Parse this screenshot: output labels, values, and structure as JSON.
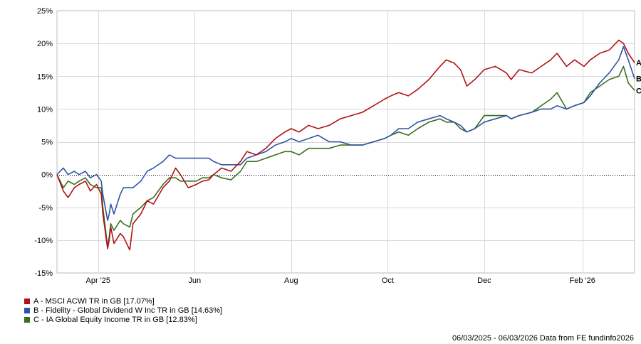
{
  "chart_data": {
    "type": "line",
    "title": "",
    "xlabel": "",
    "ylabel": "",
    "ylim": [
      -15,
      25
    ],
    "y_ticks": [
      -15,
      -10,
      -5,
      0,
      5,
      10,
      15,
      20,
      25
    ],
    "y_tick_labels": [
      "-15%",
      "-10%",
      "-5%",
      "0%",
      "5%",
      "10%",
      "15%",
      "20%",
      "25%"
    ],
    "x_range": [
      "2025-03-06",
      "2026-03-06"
    ],
    "x_ticks": [
      {
        "date": "2025-04-01",
        "label": "Apr '25"
      },
      {
        "date": "2025-06-01",
        "label": "Jun"
      },
      {
        "date": "2025-08-01",
        "label": "Aug"
      },
      {
        "date": "2025-10-01",
        "label": "Oct"
      },
      {
        "date": "2025-12-01",
        "label": "Dec"
      },
      {
        "date": "2026-02-01",
        "label": "Feb '26"
      }
    ],
    "grid": true,
    "zero_line": "dotted",
    "series": [
      {
        "name": "A - MSCI ACWI TR in GB [17.07%]",
        "end_label": "A",
        "color": "#b01116",
        "points": [
          [
            "2025-03-06",
            0
          ],
          [
            "2025-03-10",
            -2.5
          ],
          [
            "2025-03-13",
            -3.5
          ],
          [
            "2025-03-17",
            -2
          ],
          [
            "2025-03-20",
            -1.5
          ],
          [
            "2025-03-24",
            -1
          ],
          [
            "2025-03-27",
            -2.5
          ],
          [
            "2025-03-31",
            -1.5
          ],
          [
            "2025-04-03",
            -3
          ],
          [
            "2025-04-04",
            -6
          ],
          [
            "2025-04-07",
            -11.3
          ],
          [
            "2025-04-08",
            -10
          ],
          [
            "2025-04-09",
            -8
          ],
          [
            "2025-04-11",
            -10.5
          ],
          [
            "2025-04-15",
            -9
          ],
          [
            "2025-04-17",
            -9.5
          ],
          [
            "2025-04-21",
            -11.5
          ],
          [
            "2025-04-23",
            -7.5
          ],
          [
            "2025-04-28",
            -6
          ],
          [
            "2025-05-02",
            -4
          ],
          [
            "2025-05-06",
            -4.5
          ],
          [
            "2025-05-12",
            -2
          ],
          [
            "2025-05-16",
            -1
          ],
          [
            "2025-05-20",
            1
          ],
          [
            "2025-05-23",
            0
          ],
          [
            "2025-05-28",
            -2
          ],
          [
            "2025-06-02",
            -1.5
          ],
          [
            "2025-06-06",
            -1
          ],
          [
            "2025-06-10",
            -0.8
          ],
          [
            "2025-06-13",
            0
          ],
          [
            "2025-06-18",
            1
          ],
          [
            "2025-06-24",
            0.5
          ],
          [
            "2025-06-30",
            2
          ],
          [
            "2025-07-04",
            3.5
          ],
          [
            "2025-07-10",
            3
          ],
          [
            "2025-07-16",
            4
          ],
          [
            "2025-07-22",
            5.5
          ],
          [
            "2025-07-28",
            6.5
          ],
          [
            "2025-08-01",
            7
          ],
          [
            "2025-08-06",
            6.5
          ],
          [
            "2025-08-12",
            7.5
          ],
          [
            "2025-08-18",
            7
          ],
          [
            "2025-08-25",
            7.5
          ],
          [
            "2025-09-01",
            8.5
          ],
          [
            "2025-09-08",
            9
          ],
          [
            "2025-09-15",
            9.5
          ],
          [
            "2025-09-22",
            10.5
          ],
          [
            "2025-09-29",
            11.5
          ],
          [
            "2025-10-03",
            12
          ],
          [
            "2025-10-08",
            12.5
          ],
          [
            "2025-10-14",
            12
          ],
          [
            "2025-10-20",
            13
          ],
          [
            "2025-10-27",
            14.5
          ],
          [
            "2025-11-03",
            16.5
          ],
          [
            "2025-11-07",
            17.5
          ],
          [
            "2025-11-12",
            17
          ],
          [
            "2025-11-16",
            16
          ],
          [
            "2025-11-20",
            13.5
          ],
          [
            "2025-11-25",
            14.5
          ],
          [
            "2025-12-01",
            16
          ],
          [
            "2025-12-08",
            16.5
          ],
          [
            "2025-12-15",
            15.5
          ],
          [
            "2025-12-18",
            14.5
          ],
          [
            "2025-12-23",
            16
          ],
          [
            "2025-12-31",
            15.5
          ],
          [
            "2026-01-06",
            16.5
          ],
          [
            "2026-01-12",
            17.5
          ],
          [
            "2026-01-16",
            18.5
          ],
          [
            "2026-01-22",
            16.5
          ],
          [
            "2026-01-27",
            17.5
          ],
          [
            "2026-02-02",
            16.5
          ],
          [
            "2026-02-06",
            17.5
          ],
          [
            "2026-02-12",
            18.5
          ],
          [
            "2026-02-18",
            19
          ],
          [
            "2026-02-24",
            20.5
          ],
          [
            "2026-02-27",
            20
          ],
          [
            "2026-03-02",
            18.5
          ],
          [
            "2026-03-06",
            17.07
          ]
        ]
      },
      {
        "name": "B - Fidelity - Global Dividend W Inc TR in GB [14.63%]",
        "end_label": "B",
        "color": "#2f55a4",
        "points": [
          [
            "2025-03-06",
            0
          ],
          [
            "2025-03-10",
            1
          ],
          [
            "2025-03-13",
            0
          ],
          [
            "2025-03-17",
            0.5
          ],
          [
            "2025-03-20",
            0
          ],
          [
            "2025-03-24",
            0.5
          ],
          [
            "2025-03-27",
            -0.5
          ],
          [
            "2025-03-31",
            0
          ],
          [
            "2025-04-03",
            -1
          ],
          [
            "2025-04-04",
            -3
          ],
          [
            "2025-04-07",
            -7
          ],
          [
            "2025-04-08",
            -6
          ],
          [
            "2025-04-09",
            -4.5
          ],
          [
            "2025-04-11",
            -6
          ],
          [
            "2025-04-15",
            -3
          ],
          [
            "2025-04-17",
            -2
          ],
          [
            "2025-04-21",
            -2
          ],
          [
            "2025-04-23",
            -2
          ],
          [
            "2025-04-28",
            -1
          ],
          [
            "2025-05-02",
            0.5
          ],
          [
            "2025-05-06",
            1
          ],
          [
            "2025-05-12",
            2
          ],
          [
            "2025-05-16",
            3
          ],
          [
            "2025-05-20",
            2.5
          ],
          [
            "2025-05-23",
            2.5
          ],
          [
            "2025-05-28",
            2.5
          ],
          [
            "2025-06-02",
            2.5
          ],
          [
            "2025-06-06",
            2.5
          ],
          [
            "2025-06-10",
            2.5
          ],
          [
            "2025-06-13",
            2
          ],
          [
            "2025-06-18",
            1.5
          ],
          [
            "2025-06-24",
            1.5
          ],
          [
            "2025-06-30",
            1.5
          ],
          [
            "2025-07-04",
            2.5
          ],
          [
            "2025-07-10",
            3
          ],
          [
            "2025-07-16",
            3.5
          ],
          [
            "2025-07-22",
            4.5
          ],
          [
            "2025-07-28",
            5
          ],
          [
            "2025-08-01",
            5.5
          ],
          [
            "2025-08-06",
            5
          ],
          [
            "2025-08-12",
            5.5
          ],
          [
            "2025-08-18",
            6
          ],
          [
            "2025-08-25",
            5
          ],
          [
            "2025-09-01",
            5
          ],
          [
            "2025-09-08",
            4.5
          ],
          [
            "2025-09-15",
            4.5
          ],
          [
            "2025-09-22",
            5
          ],
          [
            "2025-09-29",
            5.5
          ],
          [
            "2025-10-03",
            6
          ],
          [
            "2025-10-08",
            7
          ],
          [
            "2025-10-14",
            7
          ],
          [
            "2025-10-20",
            8
          ],
          [
            "2025-10-27",
            8.5
          ],
          [
            "2025-11-03",
            9
          ],
          [
            "2025-11-07",
            8.5
          ],
          [
            "2025-11-12",
            8
          ],
          [
            "2025-11-16",
            7.5
          ],
          [
            "2025-11-20",
            6.5
          ],
          [
            "2025-11-25",
            7
          ],
          [
            "2025-12-01",
            8
          ],
          [
            "2025-12-08",
            8.5
          ],
          [
            "2025-12-15",
            9
          ],
          [
            "2025-12-18",
            8.5
          ],
          [
            "2025-12-23",
            9
          ],
          [
            "2025-12-31",
            9.5
          ],
          [
            "2026-01-06",
            10
          ],
          [
            "2026-01-12",
            10
          ],
          [
            "2026-01-16",
            10.5
          ],
          [
            "2026-01-22",
            10
          ],
          [
            "2026-01-27",
            10.5
          ],
          [
            "2026-02-02",
            11
          ],
          [
            "2026-02-06",
            12
          ],
          [
            "2026-02-12",
            14
          ],
          [
            "2026-02-18",
            15.5
          ],
          [
            "2026-02-24",
            17.5
          ],
          [
            "2026-02-27",
            19.5
          ],
          [
            "2026-03-02",
            17.5
          ],
          [
            "2026-03-06",
            14.63
          ]
        ]
      },
      {
        "name": "C - IA Global Equity Income TR in GB [12.83%]",
        "end_label": "C",
        "color": "#3b6e1e",
        "points": [
          [
            "2025-03-06",
            0
          ],
          [
            "2025-03-10",
            -2
          ],
          [
            "2025-03-13",
            -1
          ],
          [
            "2025-03-17",
            -1.5
          ],
          [
            "2025-03-20",
            -1
          ],
          [
            "2025-03-24",
            -0.5
          ],
          [
            "2025-03-27",
            -1.5
          ],
          [
            "2025-03-31",
            -2
          ],
          [
            "2025-04-03",
            -2
          ],
          [
            "2025-04-04",
            -5
          ],
          [
            "2025-04-07",
            -11
          ],
          [
            "2025-04-08",
            -9.5
          ],
          [
            "2025-04-09",
            -7.5
          ],
          [
            "2025-04-11",
            -8.5
          ],
          [
            "2025-04-15",
            -7
          ],
          [
            "2025-04-17",
            -7.5
          ],
          [
            "2025-04-21",
            -8
          ],
          [
            "2025-04-23",
            -6
          ],
          [
            "2025-04-28",
            -5
          ],
          [
            "2025-05-02",
            -4
          ],
          [
            "2025-05-06",
            -3.5
          ],
          [
            "2025-05-12",
            -1.5
          ],
          [
            "2025-05-16",
            -0.5
          ],
          [
            "2025-05-20",
            -0.5
          ],
          [
            "2025-05-23",
            -1
          ],
          [
            "2025-05-28",
            -1
          ],
          [
            "2025-06-02",
            -1
          ],
          [
            "2025-06-06",
            -0.5
          ],
          [
            "2025-06-10",
            -0.5
          ],
          [
            "2025-06-13",
            0
          ],
          [
            "2025-06-18",
            -0.5
          ],
          [
            "2025-06-24",
            -0.8
          ],
          [
            "2025-06-30",
            0.5
          ],
          [
            "2025-07-04",
            2
          ],
          [
            "2025-07-10",
            2
          ],
          [
            "2025-07-16",
            2.5
          ],
          [
            "2025-07-22",
            3
          ],
          [
            "2025-07-28",
            3.5
          ],
          [
            "2025-08-01",
            3.5
          ],
          [
            "2025-08-06",
            3
          ],
          [
            "2025-08-12",
            4
          ],
          [
            "2025-08-18",
            4
          ],
          [
            "2025-08-25",
            4
          ],
          [
            "2025-09-01",
            4.5
          ],
          [
            "2025-09-08",
            4.5
          ],
          [
            "2025-09-15",
            4.5
          ],
          [
            "2025-09-22",
            5
          ],
          [
            "2025-09-29",
            5.5
          ],
          [
            "2025-10-03",
            6
          ],
          [
            "2025-10-08",
            6.5
          ],
          [
            "2025-10-14",
            6
          ],
          [
            "2025-10-20",
            7
          ],
          [
            "2025-10-27",
            8
          ],
          [
            "2025-11-03",
            8.5
          ],
          [
            "2025-11-07",
            8
          ],
          [
            "2025-11-12",
            8
          ],
          [
            "2025-11-16",
            7
          ],
          [
            "2025-11-20",
            6.5
          ],
          [
            "2025-11-25",
            7
          ],
          [
            "2025-12-01",
            9
          ],
          [
            "2025-12-08",
            9
          ],
          [
            "2025-12-15",
            9
          ],
          [
            "2025-12-18",
            8.5
          ],
          [
            "2025-12-23",
            9
          ],
          [
            "2025-12-31",
            9.5
          ],
          [
            "2026-01-06",
            10.5
          ],
          [
            "2026-01-12",
            11.5
          ],
          [
            "2026-01-16",
            12.5
          ],
          [
            "2026-01-22",
            10
          ],
          [
            "2026-01-27",
            10.5
          ],
          [
            "2026-02-02",
            11
          ],
          [
            "2026-02-06",
            12.5
          ],
          [
            "2026-02-12",
            13.5
          ],
          [
            "2026-02-18",
            14.5
          ],
          [
            "2026-02-24",
            15
          ],
          [
            "2026-02-27",
            16.5
          ],
          [
            "2026-03-02",
            14
          ],
          [
            "2026-03-06",
            12.83
          ]
        ]
      }
    ]
  },
  "footer": {
    "date_range": "06/03/2025 - 06/03/2026",
    "source": "Data from FE fundinfo2026"
  }
}
